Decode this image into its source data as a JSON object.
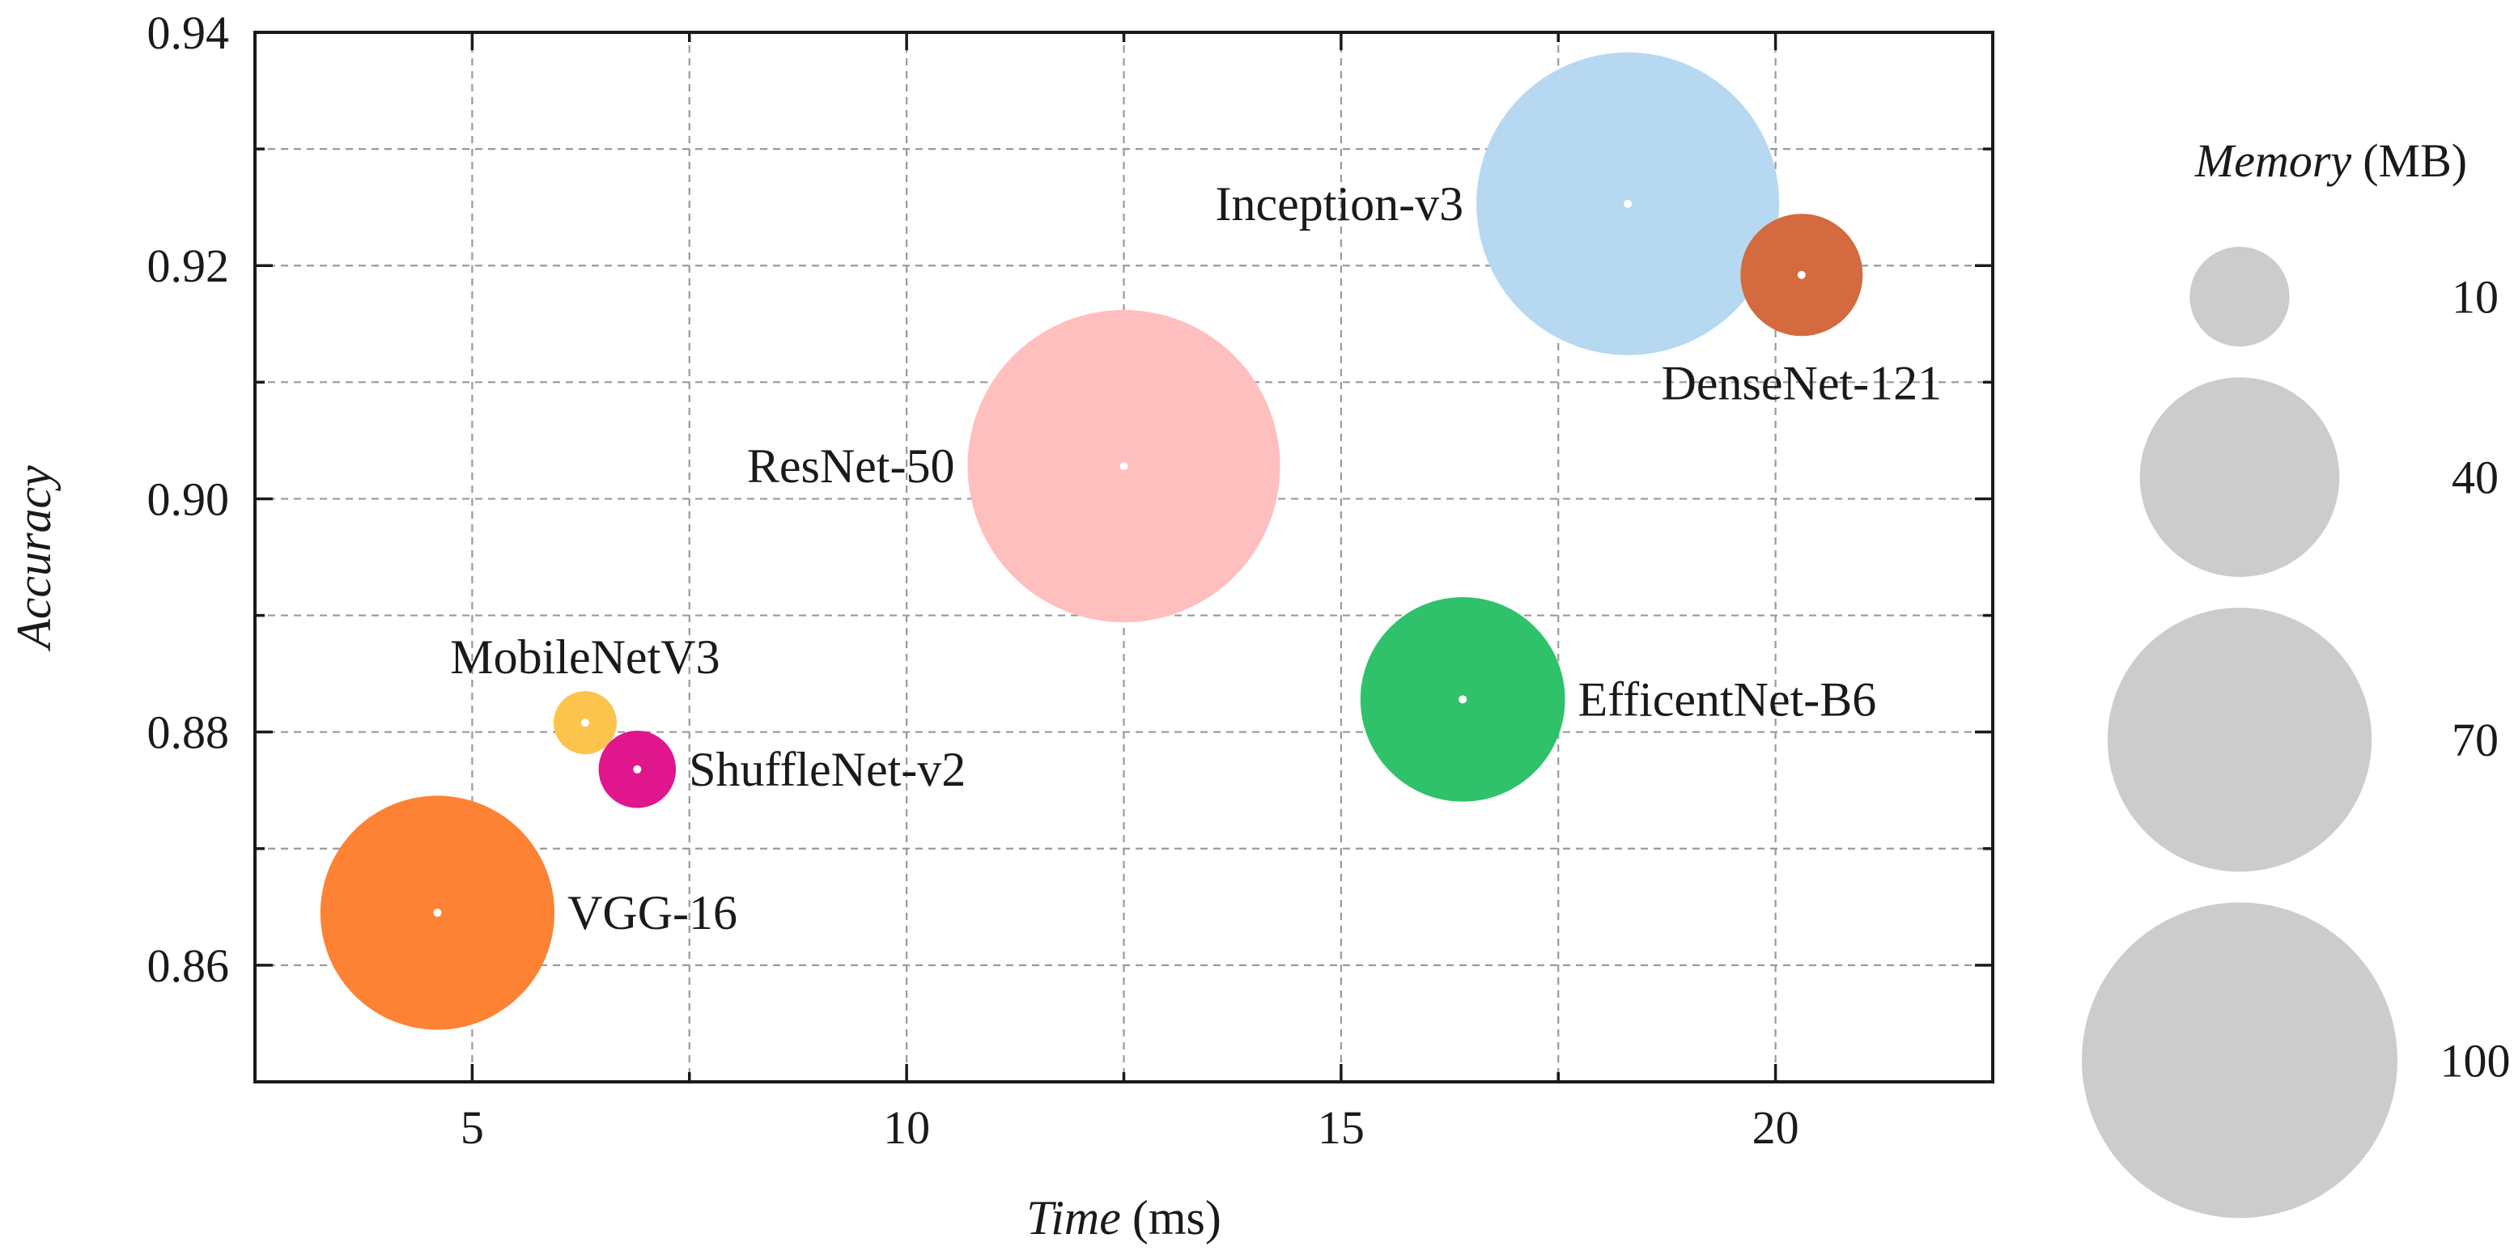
{
  "chart_data": {
    "type": "scatter",
    "subtype": "bubble",
    "xlabel_italic": "Time",
    "xlabel_unit": "(ms)",
    "ylabel": "Accuracy",
    "xlim": [
      2.5,
      22.5
    ],
    "ylim": [
      0.85,
      0.94
    ],
    "xticks": [
      5,
      10,
      15,
      20
    ],
    "xtick_labels": [
      "5",
      "10",
      "15",
      "20"
    ],
    "xminor": [
      7.5,
      12.5,
      17.5
    ],
    "yticks": [
      0.86,
      0.88,
      0.9,
      0.92,
      0.94
    ],
    "ytick_labels": [
      "0.86",
      "0.88",
      "0.90",
      "0.92",
      "0.94"
    ],
    "yminor": [
      0.87,
      0.89,
      0.91,
      0.93
    ],
    "grid": true,
    "size_variable": "Memory (MB)",
    "points": [
      {
        "name": "VGG-16",
        "x": 4.6,
        "y": 0.8645,
        "memory": 55,
        "color": "#fd8233",
        "label_position": "right"
      },
      {
        "name": "MobileNetV3",
        "x": 6.3,
        "y": 0.8808,
        "memory": 4,
        "color": "#fcc44c",
        "label_position": "above"
      },
      {
        "name": "ShuffleNet-v2",
        "x": 6.9,
        "y": 0.8768,
        "memory": 6,
        "color": "#e0168c",
        "label_position": "right"
      },
      {
        "name": "ResNet-50",
        "x": 12.5,
        "y": 0.9028,
        "memory": 98,
        "color": "#ffbfbf",
        "label_position": "left"
      },
      {
        "name": "EfficentNet-B6",
        "x": 16.4,
        "y": 0.8828,
        "memory": 42,
        "color": "#2fc26a",
        "label_position": "right"
      },
      {
        "name": "Inception-v3",
        "x": 18.3,
        "y": 0.9253,
        "memory": 92,
        "color": "#b7d8f1",
        "label_position": "left"
      },
      {
        "name": "DenseNet-121",
        "x": 20.3,
        "y": 0.9192,
        "memory": 15,
        "color": "#d46a3f",
        "label_position": "below"
      }
    ],
    "legend": {
      "title_italic": "Memory",
      "title_unit": "(MB)",
      "placement": "right",
      "sizes": [
        10,
        40,
        70,
        100
      ],
      "labels": [
        "10",
        "40",
        "70",
        "100"
      ],
      "color": "#cccccc"
    }
  }
}
